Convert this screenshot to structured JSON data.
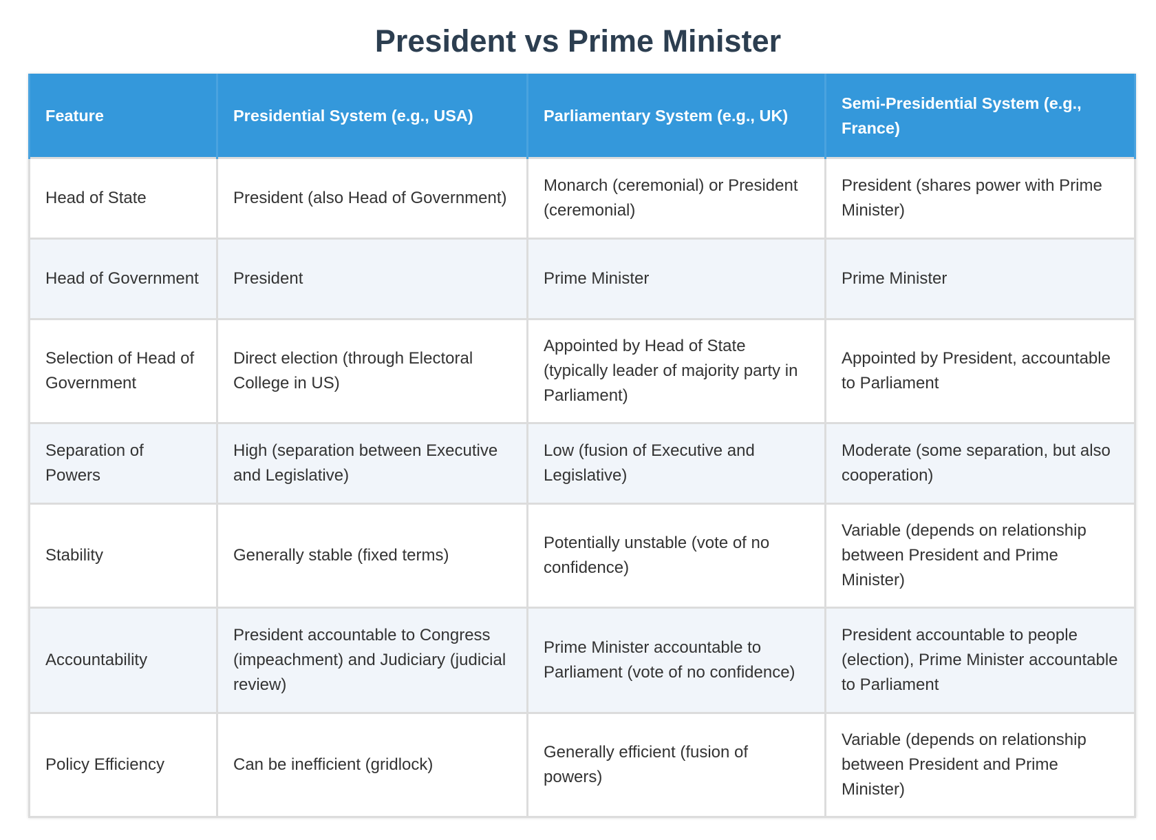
{
  "title": "President vs Prime Minister",
  "table": {
    "headers": [
      "Feature",
      "Presidential System (e.g., USA)",
      "Parliamentary System (e.g., UK)",
      "Semi-Presidential System (e.g., France)"
    ],
    "rows": [
      [
        "Head of State",
        "President (also Head of Government)",
        "Monarch (ceremonial) or President (ceremonial)",
        "President (shares power with Prime Minister)"
      ],
      [
        "Head of Government",
        "President",
        "Prime Minister",
        "Prime Minister"
      ],
      [
        "Selection of Head of Government",
        "Direct election (through Electoral College in US)",
        "Appointed by Head of State (typically leader of majority party in Parliament)",
        "Appointed by President, accountable to Parliament"
      ],
      [
        "Separation of Powers",
        "High (separation between Executive and Legislative)",
        "Low (fusion of Executive and Legislative)",
        "Moderate (some separation, but also cooperation)"
      ],
      [
        "Stability",
        "Generally stable (fixed terms)",
        "Potentially unstable (vote of no confidence)",
        "Variable (depends on relationship between President and Prime Minister)"
      ],
      [
        "Accountability",
        "President accountable to Congress (impeachment) and Judiciary (judicial review)",
        "Prime Minister accountable to Parliament (vote of no confidence)",
        "President accountable to people (election), Prime Minister accountable to Parliament"
      ],
      [
        "Policy Efficiency",
        "Can be inefficient (gridlock)",
        "Generally efficient (fusion of powers)",
        "Variable (depends on relationship between President and Prime Minister)"
      ]
    ]
  }
}
